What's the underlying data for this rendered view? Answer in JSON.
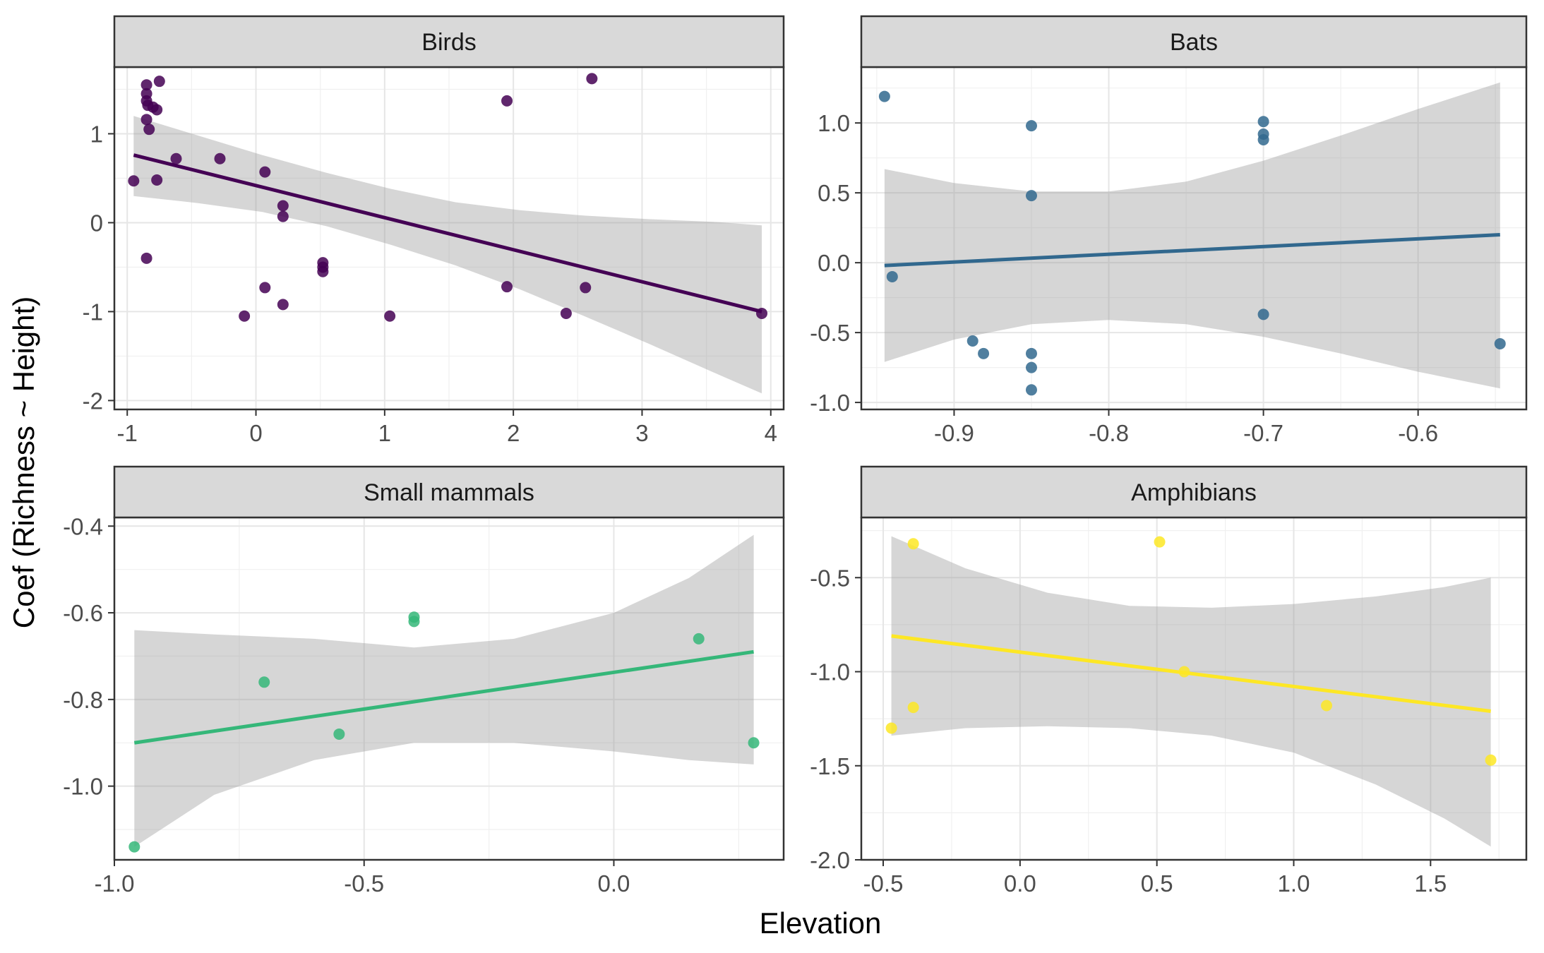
{
  "figure": {
    "xlabel": "Elevation",
    "ylabel": "Coef (Richness ~ Height)"
  },
  "chart_data": [
    {
      "type": "scatter",
      "title": "Birds",
      "color": "#440154",
      "xlim": [
        -1.1,
        4.1
      ],
      "ylim": [
        -2.1,
        1.75
      ],
      "xticks": [
        -1,
        0,
        1,
        2,
        3,
        4
      ],
      "xtick_labels": [
        "-1",
        "0",
        "1",
        "2",
        "3",
        "4"
      ],
      "yticks": [
        -2,
        -1,
        0,
        1
      ],
      "ytick_labels": [
        "-2",
        "-1",
        "0",
        "1"
      ],
      "points": [
        {
          "x": -0.95,
          "y": 0.47
        },
        {
          "x": -0.85,
          "y": 1.55
        },
        {
          "x": -0.85,
          "y": 1.45
        },
        {
          "x": -0.85,
          "y": 1.37
        },
        {
          "x": -0.84,
          "y": 1.32
        },
        {
          "x": -0.85,
          "y": 1.16
        },
        {
          "x": -0.83,
          "y": 1.05
        },
        {
          "x": -0.8,
          "y": 1.3
        },
        {
          "x": -0.77,
          "y": 1.27
        },
        {
          "x": -0.75,
          "y": 1.59
        },
        {
          "x": -0.77,
          "y": 0.48
        },
        {
          "x": -0.85,
          "y": -0.4
        },
        {
          "x": -0.62,
          "y": 0.72
        },
        {
          "x": -0.28,
          "y": 0.72
        },
        {
          "x": 0.07,
          "y": 0.57
        },
        {
          "x": 0.21,
          "y": 0.19
        },
        {
          "x": 0.21,
          "y": 0.07
        },
        {
          "x": 0.52,
          "y": -0.45
        },
        {
          "x": 0.52,
          "y": -0.5
        },
        {
          "x": 0.52,
          "y": -0.55
        },
        {
          "x": 0.07,
          "y": -0.73
        },
        {
          "x": 0.21,
          "y": -0.92
        },
        {
          "x": -0.09,
          "y": -1.05
        },
        {
          "x": 1.04,
          "y": -1.05
        },
        {
          "x": 1.95,
          "y": 1.37
        },
        {
          "x": 2.61,
          "y": 1.62
        },
        {
          "x": 1.95,
          "y": -0.72
        },
        {
          "x": 2.56,
          "y": -0.73
        },
        {
          "x": 2.41,
          "y": -1.02
        },
        {
          "x": 3.93,
          "y": -1.02
        }
      ],
      "fit": {
        "x": [
          -0.95,
          3.93
        ],
        "y": [
          0.76,
          -1.0
        ]
      },
      "ci": {
        "x": [
          -0.95,
          -0.45,
          0.05,
          0.55,
          1.05,
          1.55,
          2.05,
          2.55,
          3.05,
          3.55,
          3.93
        ],
        "lower": [
          0.3,
          0.22,
          0.12,
          -0.04,
          -0.25,
          -0.48,
          -0.75,
          -1.05,
          -1.36,
          -1.68,
          -1.92
        ],
        "upper": [
          1.2,
          0.98,
          0.76,
          0.56,
          0.38,
          0.23,
          0.14,
          0.08,
          0.04,
          0.01,
          -0.03
        ]
      }
    },
    {
      "type": "scatter",
      "title": "Bats",
      "color": "#31688E",
      "xlim": [
        -0.96,
        -0.53
      ],
      "ylim": [
        -1.05,
        1.4
      ],
      "xticks": [
        -0.9,
        -0.8,
        -0.7,
        -0.6
      ],
      "xtick_labels": [
        "-0.9",
        "-0.8",
        "-0.7",
        "-0.6"
      ],
      "yticks": [
        -1.0,
        -0.5,
        0.0,
        0.5,
        1.0
      ],
      "ytick_labels": [
        "-1.0",
        "-0.5",
        "0.0",
        "0.5",
        "1.0"
      ],
      "points": [
        {
          "x": -0.945,
          "y": 1.19
        },
        {
          "x": -0.94,
          "y": -0.1
        },
        {
          "x": -0.888,
          "y": -0.56
        },
        {
          "x": -0.881,
          "y": -0.65
        },
        {
          "x": -0.85,
          "y": 0.98
        },
        {
          "x": -0.85,
          "y": 0.48
        },
        {
          "x": -0.85,
          "y": -0.65
        },
        {
          "x": -0.85,
          "y": -0.75
        },
        {
          "x": -0.85,
          "y": -0.91
        },
        {
          "x": -0.7,
          "y": 1.01
        },
        {
          "x": -0.7,
          "y": 0.92
        },
        {
          "x": -0.7,
          "y": 0.88
        },
        {
          "x": -0.7,
          "y": -0.37
        },
        {
          "x": -0.547,
          "y": -0.58
        }
      ],
      "fit": {
        "x": [
          -0.945,
          -0.547
        ],
        "y": [
          -0.02,
          0.2
        ]
      },
      "ci": {
        "x": [
          -0.945,
          -0.9,
          -0.85,
          -0.8,
          -0.75,
          -0.7,
          -0.65,
          -0.6,
          -0.547
        ],
        "lower": [
          -0.71,
          -0.55,
          -0.44,
          -0.41,
          -0.44,
          -0.53,
          -0.65,
          -0.78,
          -0.9
        ],
        "upper": [
          0.67,
          0.57,
          0.51,
          0.51,
          0.58,
          0.73,
          0.91,
          1.1,
          1.29
        ]
      }
    },
    {
      "type": "scatter",
      "title": "Small mammals",
      "color": "#35B779",
      "xlim": [
        -1.0,
        0.34
      ],
      "ylim": [
        -1.17,
        -0.38
      ],
      "xticks": [
        -1.0,
        -0.5,
        0.0
      ],
      "xtick_labels": [
        "-1.0",
        "-0.5",
        "0.0"
      ],
      "yticks": [
        -1.0,
        -0.8,
        -0.6,
        -0.4
      ],
      "ytick_labels": [
        "-1.0",
        "-0.8",
        "-0.6",
        "-0.4"
      ],
      "points": [
        {
          "x": -0.96,
          "y": -1.14
        },
        {
          "x": -0.7,
          "y": -0.76
        },
        {
          "x": -0.55,
          "y": -0.88
        },
        {
          "x": -0.4,
          "y": -0.61
        },
        {
          "x": -0.4,
          "y": -0.62
        },
        {
          "x": 0.17,
          "y": -0.66
        },
        {
          "x": 0.28,
          "y": -0.9
        }
      ],
      "fit": {
        "x": [
          -0.96,
          0.28
        ],
        "y": [
          -0.9,
          -0.69
        ]
      },
      "ci": {
        "x": [
          -0.96,
          -0.8,
          -0.6,
          -0.4,
          -0.2,
          0.0,
          0.15,
          0.28
        ],
        "lower": [
          -1.14,
          -1.02,
          -0.94,
          -0.9,
          -0.9,
          -0.92,
          -0.94,
          -0.95
        ],
        "upper": [
          -0.64,
          -0.65,
          -0.66,
          -0.68,
          -0.66,
          -0.6,
          -0.52,
          -0.42
        ]
      }
    },
    {
      "type": "scatter",
      "title": "Amphibians",
      "color": "#FDE725",
      "xlim": [
        -0.58,
        1.85
      ],
      "ylim": [
        -2.0,
        -0.18
      ],
      "xticks": [
        -0.5,
        0.0,
        0.5,
        1.0,
        1.5
      ],
      "xtick_labels": [
        "-0.5",
        "0.0",
        "0.5",
        "1.0",
        "1.5"
      ],
      "yticks": [
        -2.0,
        -1.5,
        -1.0,
        -0.5
      ],
      "ytick_labels": [
        "-2.0",
        "-1.5",
        "-1.0",
        "-0.5"
      ],
      "points": [
        {
          "x": -0.47,
          "y": -1.3
        },
        {
          "x": -0.39,
          "y": -0.32
        },
        {
          "x": -0.39,
          "y": -1.19
        },
        {
          "x": 0.51,
          "y": -0.31
        },
        {
          "x": 0.6,
          "y": -1.0
        },
        {
          "x": 1.12,
          "y": -1.18
        },
        {
          "x": 1.72,
          "y": -1.47
        }
      ],
      "fit": {
        "x": [
          -0.47,
          1.72
        ],
        "y": [
          -0.81,
          -1.21
        ]
      },
      "ci": {
        "x": [
          -0.47,
          -0.2,
          0.1,
          0.4,
          0.7,
          1.0,
          1.3,
          1.55,
          1.72
        ],
        "lower": [
          -1.34,
          -1.3,
          -1.29,
          -1.3,
          -1.34,
          -1.43,
          -1.6,
          -1.78,
          -1.93
        ],
        "upper": [
          -0.28,
          -0.45,
          -0.58,
          -0.65,
          -0.66,
          -0.64,
          -0.6,
          -0.55,
          -0.5
        ]
      }
    }
  ]
}
